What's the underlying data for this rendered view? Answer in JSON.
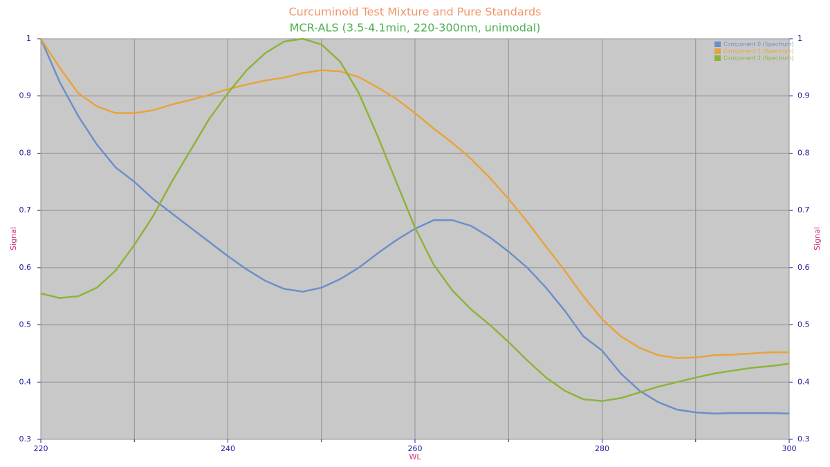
{
  "chart_data": {
    "type": "line",
    "title": "Curcuminoid Test Mixture and Pure Standards",
    "subtitle": "MCR-ALS (3.5-4.1min, 220-300nm, unimodal)",
    "x_label": "WL",
    "y_label": "Signal",
    "y2_label": "Signal",
    "x": [
      220,
      222,
      224,
      226,
      228,
      230,
      232,
      234,
      236,
      238,
      240,
      242,
      244,
      246,
      248,
      250,
      252,
      254,
      256,
      258,
      260,
      262,
      264,
      266,
      268,
      270,
      272,
      274,
      276,
      278,
      280,
      282,
      284,
      286,
      288,
      290,
      292,
      294,
      296,
      298,
      300
    ],
    "series": [
      {
        "name": "Component 0 (Spectrum)",
        "color": "#6b8fc9",
        "values": [
          1.0,
          0.925,
          0.865,
          0.815,
          0.775,
          0.75,
          0.72,
          0.695,
          0.67,
          0.645,
          0.62,
          0.597,
          0.577,
          0.563,
          0.558,
          0.565,
          0.58,
          0.6,
          0.625,
          0.648,
          0.668,
          0.683,
          0.683,
          0.673,
          0.653,
          0.628,
          0.6,
          0.565,
          0.525,
          0.48,
          0.455,
          0.415,
          0.385,
          0.365,
          0.352,
          0.347,
          0.345,
          0.346,
          0.346,
          0.346,
          0.345
        ]
      },
      {
        "name": "Component 1 (Spectrum)",
        "color": "#e8a33c",
        "values": [
          1.0,
          0.95,
          0.905,
          0.882,
          0.87,
          0.87,
          0.875,
          0.885,
          0.893,
          0.902,
          0.912,
          0.92,
          0.927,
          0.932,
          0.94,
          0.945,
          0.943,
          0.933,
          0.915,
          0.895,
          0.87,
          0.843,
          0.818,
          0.79,
          0.757,
          0.72,
          0.68,
          0.637,
          0.595,
          0.55,
          0.51,
          0.48,
          0.46,
          0.447,
          0.442,
          0.443,
          0.447,
          0.448,
          0.45,
          0.452,
          0.452
        ]
      },
      {
        "name": "Component 2 (Spectrum)",
        "color": "#8db33a",
        "values": [
          0.555,
          0.547,
          0.55,
          0.565,
          0.595,
          0.64,
          0.69,
          0.75,
          0.805,
          0.86,
          0.905,
          0.945,
          0.975,
          0.995,
          1.0,
          0.99,
          0.96,
          0.905,
          0.83,
          0.75,
          0.67,
          0.605,
          0.56,
          0.527,
          0.5,
          0.47,
          0.438,
          0.408,
          0.385,
          0.37,
          0.367,
          0.372,
          0.382,
          0.392,
          0.4,
          0.408,
          0.415,
          0.42,
          0.425,
          0.428,
          0.432
        ]
      }
    ],
    "xlim": [
      220,
      300
    ],
    "xticks": [
      220,
      240,
      260,
      280,
      300
    ],
    "xminorticks": [
      230,
      250,
      270,
      290
    ],
    "ylim": [
      0.3,
      1
    ],
    "yticks": [
      0.3,
      0.4,
      0.5,
      0.6,
      0.7,
      0.8,
      0.9,
      1
    ],
    "y2lim": [
      0.3,
      1
    ],
    "y2ticks": [
      0.3,
      0.4,
      0.5,
      0.6,
      0.7,
      0.8,
      0.9,
      1
    ],
    "grid": true,
    "legend_position": "upper right"
  }
}
